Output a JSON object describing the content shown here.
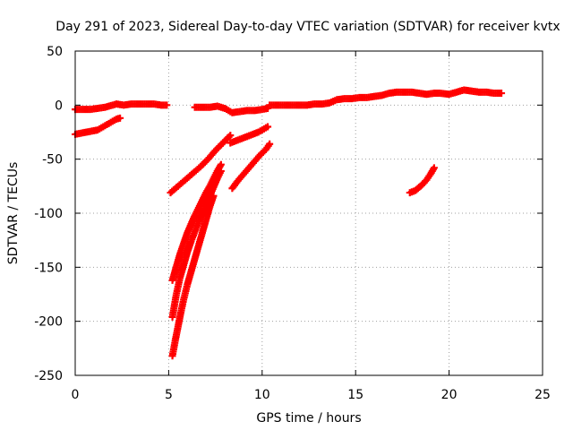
{
  "chart_data": {
    "type": "scatter",
    "title": "Day 291 of 2023, Sidereal Day-to-day VTEC variation (SDTVAR) for receiver kvtx",
    "xlabel": "GPS time / hours",
    "ylabel": "SDTVAR / TECUs",
    "xlim": [
      0,
      25
    ],
    "ylim": [
      -250,
      50
    ],
    "xticks": [
      0,
      5,
      10,
      15,
      20,
      25
    ],
    "yticks": [
      -250,
      -200,
      -150,
      -100,
      -50,
      0,
      50
    ],
    "grid": true,
    "marker": "plus",
    "color": "#ff0000",
    "series": [
      {
        "name": "track-1",
        "x": [
          0.0,
          0.4,
          0.8,
          1.2,
          1.6,
          2.0,
          2.2,
          2.6,
          3.0,
          3.4,
          3.8,
          4.2,
          4.6,
          4.9
        ],
        "y": [
          -4,
          -4,
          -4,
          -3,
          -2,
          0,
          1,
          0,
          1,
          1,
          1,
          1,
          0,
          0
        ]
      },
      {
        "name": "track-2",
        "x": [
          0.0,
          0.3,
          0.6,
          0.9,
          1.2,
          1.4,
          1.6,
          1.8,
          2.0,
          2.2,
          2.4
        ],
        "y": [
          -27,
          -26,
          -25,
          -24,
          -23,
          -21,
          -19,
          -17,
          -15,
          -13,
          -12
        ]
      },
      {
        "name": "track-3",
        "x": [
          6.4,
          6.8,
          7.2,
          7.6,
          8.0,
          8.4,
          8.8,
          9.2,
          9.6,
          10.0,
          10.3
        ],
        "y": [
          -2,
          -2,
          -2,
          -1,
          -3,
          -7,
          -6,
          -5,
          -5,
          -4,
          -3
        ]
      },
      {
        "name": "track-4",
        "x": [
          10.4,
          10.8,
          11.2,
          11.6,
          12.0,
          12.4,
          12.8,
          13.2,
          13.6,
          14.0,
          14.4,
          14.8,
          15.2,
          15.6,
          16.0,
          16.4,
          16.8,
          17.2,
          17.6,
          18.0,
          18.4,
          18.8,
          19.2,
          19.5,
          20.0,
          20.4,
          20.8,
          21.2,
          21.6,
          22.0,
          22.4,
          22.8
        ],
        "y": [
          0,
          0,
          0,
          0,
          0,
          0,
          1,
          1,
          2,
          5,
          6,
          6,
          7,
          7,
          8,
          9,
          11,
          12,
          12,
          12,
          11,
          10,
          11,
          11,
          10,
          12,
          14,
          13,
          12,
          12,
          11,
          11
        ]
      },
      {
        "name": "track-5",
        "x": [
          5.1,
          5.5,
          5.9,
          6.3,
          6.7,
          7.1,
          7.5,
          7.9,
          8.3
        ],
        "y": [
          -81,
          -75,
          -69,
          -63,
          -57,
          -50,
          -42,
          -35,
          -28
        ]
      },
      {
        "name": "track-6",
        "x": [
          8.3,
          8.6,
          8.9,
          9.2,
          9.5,
          9.8,
          10.1,
          10.3
        ],
        "y": [
          -35,
          -33,
          -31,
          -29,
          -27,
          -25,
          -22,
          -20
        ]
      },
      {
        "name": "track-7",
        "x": [
          5.2,
          5.4,
          5.6,
          5.8,
          6.0,
          6.2,
          6.4,
          6.6,
          6.8,
          7.0,
          7.2,
          7.4,
          7.6,
          7.8
        ],
        "y": [
          -162,
          -150,
          -138,
          -128,
          -118,
          -110,
          -102,
          -95,
          -88,
          -81,
          -75,
          -68,
          -61,
          -55
        ]
      },
      {
        "name": "track-8",
        "x": [
          5.2,
          5.4,
          5.6,
          5.8,
          6.0,
          6.2,
          6.4,
          6.6,
          6.8,
          7.0,
          7.2,
          7.4,
          7.6,
          7.8
        ],
        "y": [
          -196,
          -176,
          -160,
          -148,
          -136,
          -126,
          -117,
          -108,
          -100,
          -92,
          -84,
          -76,
          -68,
          -61
        ]
      },
      {
        "name": "track-9",
        "x": [
          5.2,
          5.35,
          5.5,
          5.65,
          5.8,
          6.0,
          6.2,
          6.4,
          6.6,
          6.8,
          7.0,
          7.2,
          7.4
        ],
        "y": [
          -232,
          -218,
          -205,
          -192,
          -180,
          -166,
          -154,
          -142,
          -130,
          -118,
          -106,
          -94,
          -84
        ]
      },
      {
        "name": "track-10",
        "x": [
          8.4,
          8.7,
          9.0,
          9.3,
          9.6,
          9.9,
          10.2,
          10.4
        ],
        "y": [
          -77,
          -70,
          -64,
          -58,
          -52,
          -46,
          -41,
          -36
        ]
      },
      {
        "name": "track-11",
        "x": [
          17.9,
          18.2,
          18.4,
          18.6,
          18.8,
          19.0,
          19.2
        ],
        "y": [
          -81,
          -79,
          -76,
          -73,
          -69,
          -64,
          -58
        ]
      }
    ]
  }
}
